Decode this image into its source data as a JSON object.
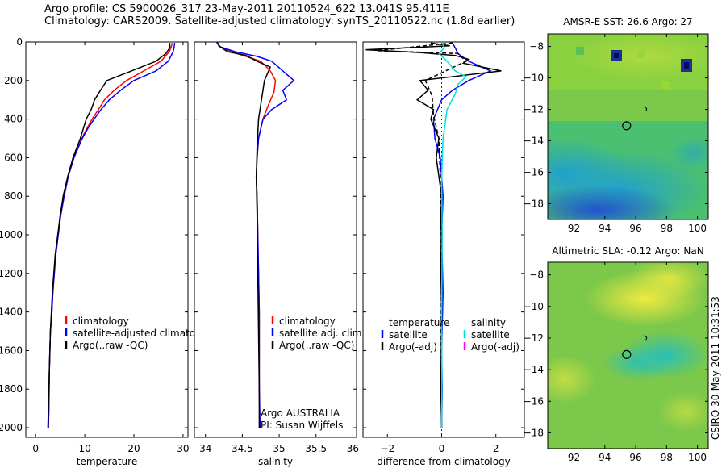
{
  "header": {
    "line1": "Argo profile: CS 5900026_317 23-May-2011 20110524_622 13.041S 95.411E",
    "line2": "Climatology: CARS2009. Satellite-adjusted climatology: synTS_20110522.nc (1.8d earlier)"
  },
  "stamp": "CSIRO 30-May-2011 10:31:53",
  "colors": {
    "climatology": "#ff0000",
    "satellite": "#0000ff",
    "argo": "#000000",
    "cyan": "#00e0e0",
    "magenta": "#ff00ff"
  },
  "chart_data": [
    {
      "type": "line",
      "xlabel": "temperature",
      "xlim": [
        -2,
        31
      ],
      "xticks": [
        0,
        10,
        20,
        30
      ],
      "ylim": [
        2050,
        0
      ],
      "yticks": [
        0,
        200,
        400,
        600,
        800,
        1000,
        1200,
        1400,
        1600,
        1800,
        2000
      ],
      "legend": [
        "climatology",
        "satellite-adjusted climatology",
        "Argo(..raw -QC)"
      ],
      "legend_position": "lower-right",
      "series": [
        {
          "name": "climatology",
          "color": "#ff0000",
          "x": [
            27.8,
            27.6,
            27.2,
            25.5,
            22,
            18.5,
            16,
            14,
            12.8,
            11.5,
            10.4,
            9.4,
            7.8,
            6.6,
            5.8,
            5.1,
            4.6,
            4.1,
            3.8,
            3.5,
            3.3,
            3.0,
            2.8,
            2.7,
            2.6
          ],
          "y": [
            5,
            25,
            50,
            100,
            150,
            200,
            250,
            300,
            350,
            400,
            450,
            500,
            600,
            700,
            800,
            900,
            1000,
            1100,
            1200,
            1300,
            1400,
            1500,
            1700,
            1900,
            2000
          ]
        },
        {
          "name": "satellite-adjusted climatology",
          "color": "#0000ff",
          "x": [
            28.3,
            28.2,
            28.0,
            27.0,
            24.5,
            20,
            17.3,
            15.0,
            13.3,
            11.9,
            10.6,
            9.5,
            7.8,
            6.6,
            5.8,
            5.1,
            4.6,
            4.1,
            3.8,
            3.5,
            3.3,
            3.0,
            2.8,
            2.7,
            2.6
          ],
          "y": [
            5,
            25,
            50,
            100,
            150,
            200,
            250,
            300,
            350,
            400,
            450,
            500,
            600,
            700,
            800,
            900,
            1000,
            1100,
            1200,
            1300,
            1400,
            1500,
            1700,
            1900,
            2000
          ]
        },
        {
          "name": "Argo(..raw -QC)",
          "color": "#000000",
          "x": [
            27.3,
            27.3,
            26.5,
            24.5,
            19.5,
            14.5,
            13.2,
            12.0,
            11.3,
            10.3,
            9.1,
            7.6,
            6.5,
            5.6,
            5.0,
            4.5,
            4.0,
            3.7,
            3.4,
            3.2,
            3.0,
            2.8,
            2.6,
            2.5
          ],
          "y": [
            5,
            30,
            60,
            100,
            150,
            200,
            250,
            300,
            350,
            400,
            500,
            600,
            700,
            800,
            900,
            1000,
            1100,
            1200,
            1300,
            1400,
            1500,
            1700,
            1900,
            2000
          ]
        }
      ]
    },
    {
      "type": "line",
      "xlabel": "salinity",
      "xlim": [
        33.85,
        36.05
      ],
      "xticks": [
        34,
        34.5,
        35,
        35.5,
        36
      ],
      "ylim": [
        2050,
        0
      ],
      "legend": [
        "climatology",
        "satellite adj. clim.",
        "Argo(..raw -QC)"
      ],
      "legend_position": "lower-right",
      "annotation": [
        "Argo AUSTRALIA",
        "PI: Susan Wijffels"
      ],
      "series": [
        {
          "name": "climatology",
          "color": "#ff0000",
          "x": [
            34.15,
            34.2,
            34.35,
            34.55,
            34.75,
            34.88,
            34.95,
            34.93,
            34.85,
            34.78,
            34.72,
            34.7,
            34.69,
            34.7,
            34.71,
            34.72,
            34.73,
            34.73,
            34.73,
            34.74
          ],
          "y": [
            0,
            25,
            50,
            75,
            100,
            150,
            200,
            260,
            330,
            400,
            500,
            600,
            700,
            800,
            1000,
            1200,
            1400,
            1600,
            1800,
            2000
          ]
        },
        {
          "name": "satellite adj. clim.",
          "color": "#0000ff",
          "x": [
            34.15,
            34.2,
            34.4,
            34.7,
            34.9,
            35.05,
            35.2,
            35.05,
            35.1,
            34.9,
            34.78,
            34.72,
            34.7,
            34.69,
            34.7,
            34.71,
            34.72,
            34.73,
            34.73,
            34.73,
            34.74
          ],
          "y": [
            0,
            25,
            50,
            75,
            100,
            150,
            200,
            250,
            300,
            350,
            400,
            500,
            600,
            700,
            800,
            1000,
            1200,
            1400,
            1600,
            1800,
            2000
          ]
        },
        {
          "name": "Argo(..raw -QC)",
          "color": "#000000",
          "x": [
            34.16,
            34.18,
            34.3,
            34.55,
            34.7,
            34.88,
            34.8,
            34.72,
            34.7,
            34.69,
            34.7,
            34.71,
            34.72,
            34.73,
            34.73
          ],
          "y": [
            0,
            20,
            50,
            70,
            100,
            130,
            200,
            400,
            550,
            700,
            900,
            1200,
            1500,
            1800,
            2000
          ]
        }
      ]
    },
    {
      "type": "line",
      "xlabel": "difference from climatology",
      "xlim": [
        -2.9,
        3.05
      ],
      "xticks": [
        -2,
        0,
        2
      ],
      "ylim": [
        2050,
        0
      ],
      "legend": [
        "temperature",
        "satellite",
        "Argo(-adj)",
        "salinity",
        "satellite",
        "Argo(-adj)"
      ],
      "legend_position": "lower-right",
      "series": [
        {
          "name": "satellite",
          "color": "#0000ff",
          "x": [
            0.4,
            0.5,
            0.6,
            1.0,
            1.8,
            1.0,
            0.4,
            0.0,
            -0.3,
            -0.25,
            -0.05,
            0.05,
            0.0,
            0.05,
            0.0,
            0.02,
            0.0
          ],
          "y": [
            5,
            30,
            60,
            100,
            150,
            200,
            250,
            300,
            400,
            500,
            600,
            800,
            1000,
            1300,
            1600,
            1800,
            2000
          ]
        },
        {
          "name": "Argo(-adj)",
          "color": "#000000",
          "x": [
            -0.4,
            0.3,
            -2.8,
            -0.8,
            0.5,
            1.0,
            0.8,
            2.2,
            -0.8,
            -0.5,
            -0.9,
            -0.3,
            -0.4,
            -0.1,
            -0.2,
            0.0,
            -0.05,
            0.0,
            -0.03,
            0.0
          ],
          "y": [
            5,
            20,
            40,
            55,
            70,
            90,
            110,
            150,
            200,
            250,
            300,
            350,
            400,
            500,
            600,
            800,
            1000,
            1400,
            1800,
            2000
          ]
        },
        {
          "name": "Argo(-adj) ",
          "color": "#000000",
          "x": [
            0.4,
            -2.4,
            0.6,
            0.9,
            -0.6,
            -0.35,
            -0.3,
            -0.1,
            -0.05,
            0.0,
            -0.02,
            0.0
          ],
          "y": [
            5,
            45,
            60,
            100,
            200,
            280,
            380,
            500,
            700,
            1000,
            1500,
            2000
          ]
        },
        {
          "name": "satellite",
          "color": "#00e0e0",
          "x": [
            0.0,
            0.1,
            -0.1,
            0.2,
            0.5,
            0.9,
            0.6,
            0.5,
            0.2,
            0.05,
            0.0,
            0.02,
            0.0,
            0.01,
            0.0
          ],
          "y": [
            0,
            30,
            60,
            100,
            150,
            180,
            220,
            270,
            350,
            500,
            700,
            1000,
            1400,
            1800,
            2000
          ]
        }
      ]
    },
    {
      "type": "heatmap",
      "title": "AMSR-E SST: 26.6 Argo: 27",
      "xlim": [
        90.3,
        100.7
      ],
      "ylim": [
        -19.0,
        -7.2
      ],
      "xticks": [
        92,
        94,
        96,
        98,
        100
      ],
      "yticks": [
        -8,
        -10,
        -12,
        -14,
        -16,
        -18
      ],
      "marker": {
        "x": 95.411,
        "y": -13.041
      }
    },
    {
      "type": "heatmap",
      "title": "Altimetric SLA: -0.12 Argo: NaN",
      "xlim": [
        90.3,
        100.7
      ],
      "ylim": [
        -19.0,
        -7.2
      ],
      "xticks": [
        92,
        94,
        96,
        98,
        100
      ],
      "yticks": [
        -8,
        -10,
        -12,
        -14,
        -16,
        -18
      ],
      "marker": {
        "x": 95.411,
        "y": -13.041
      }
    }
  ]
}
